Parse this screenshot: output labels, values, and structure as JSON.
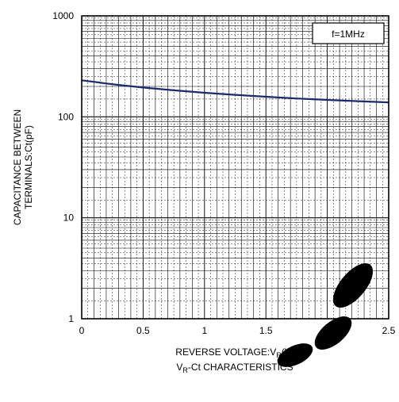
{
  "chart_data": {
    "type": "line",
    "title": "VR-Ct CHARACTERISTICS",
    "title_parts": {
      "pre": "V",
      "sub": "R",
      "post": "-Ct CHARACTERISTICS"
    },
    "xlabel": "REVERSE VOLTAGE:VR(V)",
    "xlabel_parts": {
      "pre": "REVERSE VOLTAGE:V",
      "sub": "R",
      "post": "(V)"
    },
    "ylabel": "CAPACITANCE BETWEEN TERMINALS:Ct(pF)",
    "ylabel_lines": [
      "CAPACITANCE BETWEEN",
      "TERMINALS:Ct(pF)"
    ],
    "x_scale": "linear",
    "y_scale": "log",
    "xlim": [
      0,
      2.5
    ],
    "ylim": [
      1,
      1000
    ],
    "x_ticks": [
      0,
      0.5,
      1,
      1.5,
      2,
      2.5
    ],
    "x_tick_labels": [
      "0",
      "0.5",
      "1",
      "1.5",
      "2",
      "2.5"
    ],
    "y_ticks": [
      1,
      10,
      100,
      1000
    ],
    "y_tick_labels": [
      "1",
      "10",
      "100",
      "1000"
    ],
    "grid": true,
    "annotation": "f=1MHz",
    "colors": {
      "series": "#1a2a6c",
      "grid": "#000000",
      "watermark": "#000000"
    },
    "series": [
      {
        "x": [
          0,
          0.1,
          0.2,
          0.3,
          0.5,
          0.75,
          1.0,
          1.25,
          1.5,
          1.75,
          2.0,
          2.25,
          2.5
        ],
        "y": [
          230,
          222,
          214,
          207,
          195,
          183,
          173,
          165,
          158,
          152,
          147,
          143,
          139
        ]
      }
    ]
  }
}
